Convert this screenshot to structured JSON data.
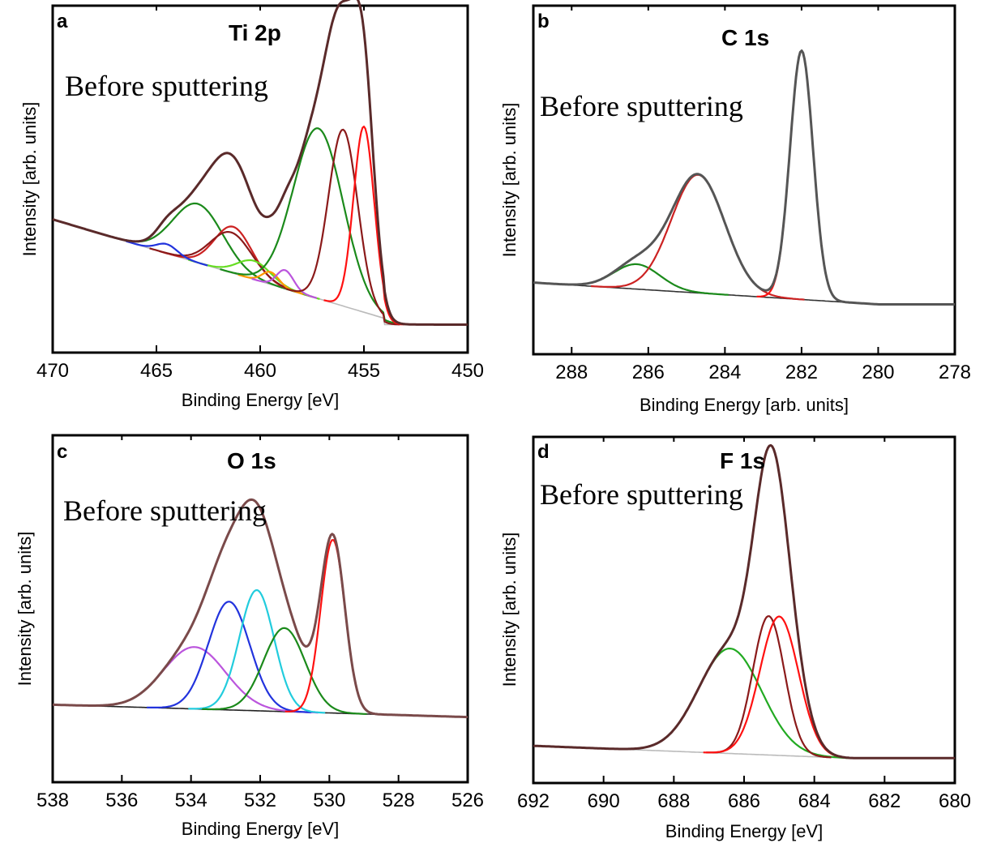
{
  "chart_data": [
    {
      "type": "line",
      "panel": "a",
      "title": "Ti 2p",
      "annotation": "Before sputtering",
      "xlabel": "Binding Energy [eV]",
      "ylabel": "Intensity [arb. units]",
      "xlim": [
        470,
        450
      ],
      "xticks": [
        470,
        465,
        460,
        455,
        450
      ],
      "xtick_labels": [
        "470",
        "465",
        "460",
        "455",
        "450"
      ],
      "ylim": [
        0,
        1.1
      ],
      "grid": false,
      "background": {
        "type": "linear",
        "x": [
          470,
          454
        ],
        "y": [
          0.42,
          0.1
        ],
        "after": 0.08,
        "color": "#bbbbbb"
      },
      "series": [
        {
          "color": "#1b8a1b",
          "peaks": [
            [
              463.0,
              0.19,
              1.2
            ]
          ]
        },
        {
          "color": "#cc2222",
          "peaks": [
            [
              461.3,
              0.15,
              0.9
            ]
          ]
        },
        {
          "color": "#8b1a1a",
          "peaks": [
            [
              461.4,
              0.13,
              1.0
            ]
          ]
        },
        {
          "color": "#66dd22",
          "peaks": [
            [
              460.3,
              0.06,
              0.8
            ]
          ]
        },
        {
          "color": "#ff9900",
          "peaks": [
            [
              459.5,
              0.04,
              0.4
            ]
          ]
        },
        {
          "color": "#bb55dd",
          "peaks": [
            [
              458.8,
              0.06,
              0.4
            ]
          ]
        },
        {
          "color": "#2233dd",
          "peaks": [
            [
              464.5,
              0.03,
              0.5
            ]
          ]
        },
        {
          "color": "#1b8a1b",
          "peaks": [
            [
              457.2,
              0.55,
              1.2
            ]
          ]
        },
        {
          "color": "#8b1a1a",
          "peaks": [
            [
              456.0,
              0.57,
              0.7
            ]
          ]
        },
        {
          "color": "#ff1111",
          "peaks": [
            [
              455.0,
              0.6,
              0.5
            ]
          ]
        },
        {
          "color": "#5a2a2a",
          "width": 3,
          "peaks": [
            [
              463.0,
              0.19,
              1.2
            ],
            [
              461.3,
              0.15,
              0.9
            ],
            [
              461.4,
              0.13,
              1.0
            ],
            [
              460.3,
              0.06,
              0.8
            ],
            [
              459.5,
              0.04,
              0.4
            ],
            [
              458.8,
              0.06,
              0.4
            ],
            [
              464.5,
              0.03,
              0.5
            ],
            [
              457.2,
              0.55,
              1.2
            ],
            [
              456.0,
              0.57,
              0.7
            ],
            [
              455.0,
              0.6,
              0.5
            ]
          ]
        }
      ]
    },
    {
      "type": "line",
      "panel": "b",
      "title": "C 1s",
      "annotation": "Before sputtering",
      "xlabel": "Binding Energy [arb. units]",
      "ylabel": "Intensity [arb. units]",
      "xlim": [
        289,
        278
      ],
      "xticks": [
        288,
        286,
        284,
        282,
        280,
        278
      ],
      "xtick_labels": [
        "288",
        "286",
        "284",
        "282",
        "280",
        "278"
      ],
      "ylim": [
        0,
        1.1
      ],
      "grid": false,
      "background": {
        "type": "linear",
        "x": [
          289,
          280
        ],
        "y": [
          0.22,
          0.15
        ],
        "after": 0.15,
        "color": "#333333"
      },
      "series": [
        {
          "color": "#1b8a1b",
          "peaks": [
            [
              286.3,
              0.08,
              0.6
            ]
          ]
        },
        {
          "color": "#cc2222",
          "peaks": [
            [
              284.7,
              0.38,
              0.7
            ]
          ]
        },
        {
          "color": "#ff1111",
          "peaks": [
            [
              282.0,
              0.8,
              0.3
            ]
          ]
        },
        {
          "color": "#555555",
          "width": 3,
          "peaks": [
            [
              286.3,
              0.08,
              0.6
            ],
            [
              284.7,
              0.38,
              0.7
            ],
            [
              282.0,
              0.8,
              0.3
            ]
          ]
        }
      ]
    },
    {
      "type": "line",
      "panel": "c",
      "title": "O 1s",
      "annotation": "Before sputtering",
      "xlabel": "Binding Energy [eV]",
      "ylabel": "Intensity [arb. units]",
      "xlim": [
        538,
        526
      ],
      "xticks": [
        538,
        536,
        534,
        532,
        530,
        528,
        526
      ],
      "xtick_labels": [
        "538",
        "536",
        "534",
        "532",
        "530",
        "528",
        "526"
      ],
      "ylim": [
        0,
        1.1
      ],
      "grid": false,
      "background": {
        "type": "linear",
        "x": [
          538,
          526
        ],
        "y": [
          0.24,
          0.2
        ],
        "after": 0.2,
        "color": "#222222"
      },
      "series": [
        {
          "color": "#bb55dd",
          "peaks": [
            [
              533.9,
              0.2,
              0.9
            ]
          ]
        },
        {
          "color": "#2233dd",
          "peaks": [
            [
              532.9,
              0.35,
              0.6
            ]
          ]
        },
        {
          "color": "#22ccdd",
          "peaks": [
            [
              532.1,
              0.39,
              0.5
            ]
          ]
        },
        {
          "color": "#1b8a1b",
          "peaks": [
            [
              531.3,
              0.27,
              0.6
            ]
          ]
        },
        {
          "color": "#ff1111",
          "peaks": [
            [
              529.9,
              0.56,
              0.35
            ]
          ]
        },
        {
          "color": "#7a4a4a",
          "width": 3,
          "peaks": [
            [
              533.9,
              0.2,
              0.9
            ],
            [
              532.9,
              0.35,
              0.6
            ],
            [
              532.1,
              0.39,
              0.5
            ],
            [
              531.3,
              0.27,
              0.6
            ],
            [
              529.9,
              0.56,
              0.35
            ]
          ]
        }
      ]
    },
    {
      "type": "line",
      "panel": "d",
      "title": "F 1s",
      "annotation": "Before sputtering",
      "xlabel": "Binding Energy [eV]",
      "ylabel": "Intensity [arb. units]",
      "xlim": [
        692,
        680
      ],
      "xticks": [
        692,
        690,
        688,
        686,
        684,
        682,
        680
      ],
      "xtick_labels": [
        "692",
        "690",
        "688",
        "686",
        "684",
        "682",
        "680"
      ],
      "ylim": [
        0,
        1.1
      ],
      "grid": false,
      "background": {
        "type": "linear",
        "x": [
          692,
          683
        ],
        "y": [
          0.11,
          0.07
        ],
        "after": 0.07,
        "color": "#bbbbbb"
      },
      "series": [
        {
          "color": "#22aa22",
          "peaks": [
            [
              686.4,
              0.34,
              0.9
            ]
          ]
        },
        {
          "color": "#8b1a1a",
          "peaks": [
            [
              685.3,
              0.45,
              0.45
            ]
          ]
        },
        {
          "color": "#ff1111",
          "peaks": [
            [
              685.0,
              0.45,
              0.55
            ]
          ]
        },
        {
          "color": "#5a2a2a",
          "width": 3,
          "peaks": [
            [
              686.4,
              0.34,
              0.9
            ],
            [
              685.3,
              0.45,
              0.45
            ],
            [
              685.0,
              0.45,
              0.55
            ]
          ]
        }
      ]
    }
  ]
}
